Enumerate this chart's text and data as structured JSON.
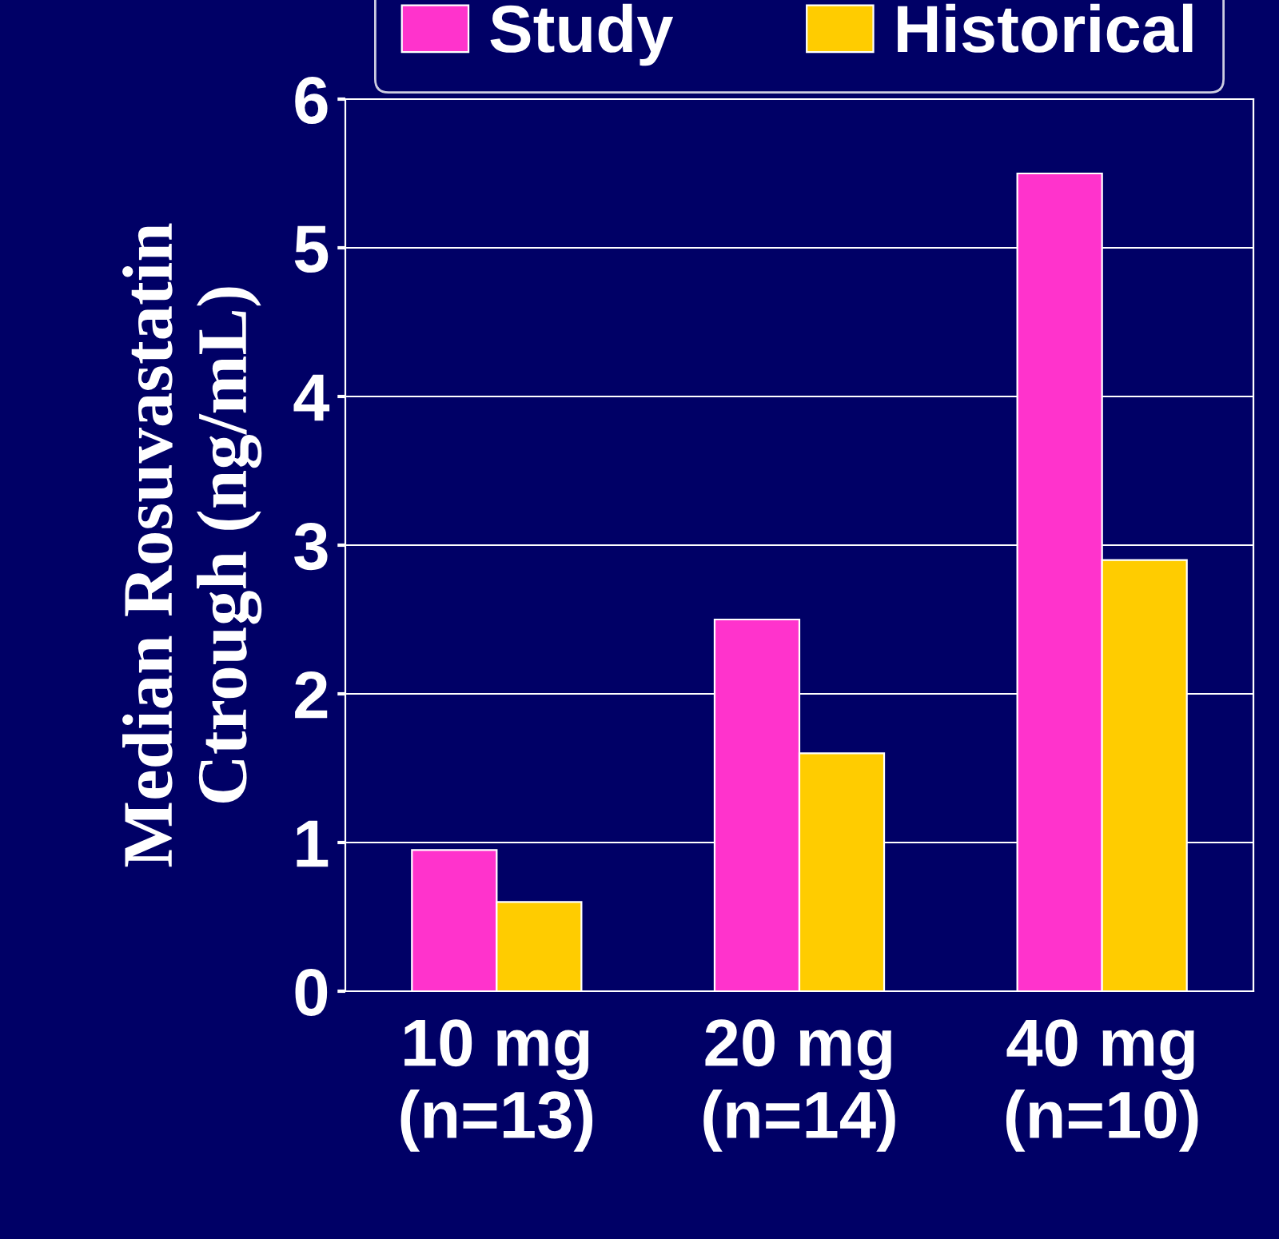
{
  "chart_data": {
    "type": "bar",
    "ylabel": "Median Rosuvastatin\nCtrough (ng/mL)",
    "categories": [
      "10 mg\n(n=13)",
      "20 mg\n(n=14)",
      "40 mg\n(n=10)"
    ],
    "series": [
      {
        "name": "Study",
        "color": "#ff33cc",
        "values": [
          0.95,
          2.5,
          5.5
        ]
      },
      {
        "name": "Historical",
        "color": "#ffcc00",
        "values": [
          0.6,
          1.6,
          2.9
        ]
      }
    ],
    "ylim": [
      0,
      6
    ],
    "yticks": [
      0,
      1,
      2,
      3,
      4,
      5,
      6
    ],
    "grid": "y",
    "legend": "top"
  }
}
